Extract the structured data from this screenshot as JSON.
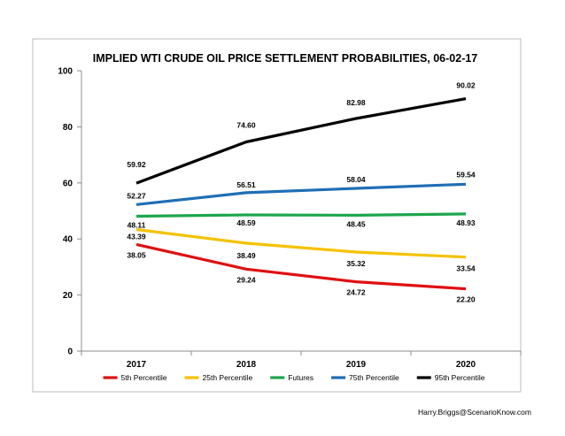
{
  "chart_data": {
    "type": "line",
    "title": "IMPLIED WTI CRUDE OIL PRICE SETTLEMENT PROBABILITIES, 06-02-17",
    "xlabel": "",
    "ylabel": "",
    "categories": [
      "2017",
      "2018",
      "2019",
      "2020"
    ],
    "ylim": [
      0,
      100
    ],
    "yticks": [
      "0",
      "20",
      "40",
      "60",
      "80",
      "100"
    ],
    "grid": false,
    "legend_position": "bottom",
    "series": [
      {
        "name": "5th Percentile",
        "color": "#e01010",
        "values": [
          38.05,
          29.24,
          24.72,
          22.2
        ],
        "labels": [
          "38.05",
          "29.24",
          "24.72",
          "22.20"
        ]
      },
      {
        "name": "25th Percentile",
        "color": "#f5c200",
        "values": [
          43.39,
          38.49,
          35.32,
          33.54
        ],
        "labels": [
          "43.39",
          "38.49",
          "35.32",
          "33.54"
        ]
      },
      {
        "name": "Futures",
        "color": "#1ca64c",
        "values": [
          48.11,
          48.59,
          48.45,
          48.93
        ],
        "labels": [
          "48.11",
          "48.59",
          "48.45",
          "48.93"
        ]
      },
      {
        "name": "75th Percentile",
        "color": "#1f6fb5",
        "values": [
          52.27,
          56.51,
          58.04,
          59.54
        ],
        "labels": [
          "52.27",
          "56.51",
          "58.04",
          "59.54"
        ]
      },
      {
        "name": "95th Percentile",
        "color": "#000000",
        "values": [
          59.92,
          74.6,
          82.98,
          90.02
        ],
        "labels": [
          "59.92",
          "74.60",
          "82.98",
          "90.02"
        ]
      }
    ]
  },
  "footer": {
    "credit": "Harry.Briggs@ScenarioKnow.com"
  }
}
